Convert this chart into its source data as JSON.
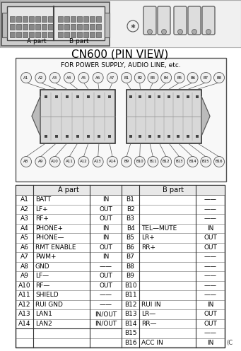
{
  "title": "CN600 (PIN VIEW)",
  "subtitle": "FOR POWER SUPPLY, AUDIO LINE, etc.",
  "connector_label_top_A": [
    "A1",
    "A2",
    "A3",
    "A4",
    "A5",
    "A6",
    "A7"
  ],
  "connector_label_top_B": [
    "B1",
    "B2",
    "B3",
    "B4",
    "B5",
    "B6",
    "B7",
    "B8"
  ],
  "connector_label_bot_A": [
    "A8",
    "A9",
    "A10",
    "A11",
    "A12",
    "A13",
    "A14"
  ],
  "connector_label_bot_B": [
    "B9",
    "B10",
    "B11",
    "B12",
    "B13",
    "B14",
    "B15",
    "B16"
  ],
  "rows": [
    [
      "A1",
      "BATT",
      "IN",
      "B1",
      "",
      "——"
    ],
    [
      "A2",
      "LF+",
      "OUT",
      "B2",
      "",
      "——"
    ],
    [
      "A3",
      "RF+",
      "OUT",
      "B3",
      "",
      "——"
    ],
    [
      "A4",
      "PHONE+",
      "IN",
      "B4",
      "TEL—MUTE",
      "IN"
    ],
    [
      "A5",
      "PHONE—",
      "IN",
      "B5",
      "LR+",
      "OUT"
    ],
    [
      "A6",
      "RMT ENABLE",
      "OUT",
      "B6",
      "RR+",
      "OUT"
    ],
    [
      "A7",
      "PWM+",
      "IN",
      "B7",
      "",
      "——"
    ],
    [
      "A8",
      "GND",
      "——",
      "B8",
      "",
      "——"
    ],
    [
      "A9",
      "LF—",
      "OUT",
      "B9",
      "",
      "——"
    ],
    [
      "A10",
      "RF—",
      "OUT",
      "B10",
      "",
      "——"
    ],
    [
      "A11",
      "SHIELD",
      "——",
      "B11",
      "",
      "——"
    ],
    [
      "A12",
      "RUI GND",
      "——",
      "B12",
      "RUI IN",
      "IN"
    ],
    [
      "A13",
      "LAN1",
      "IN/OUT",
      "B13",
      "LR—",
      "OUT"
    ],
    [
      "A14",
      "LAN2",
      "IN/OUT",
      "B14",
      "RR—",
      "OUT"
    ],
    [
      "",
      "",
      "",
      "B15",
      "",
      "——"
    ],
    [
      "",
      "",
      "",
      "B16",
      "ACC IN",
      "IN"
    ]
  ],
  "bg_color": "#ffffff",
  "border_color": "#000000",
  "text_color": "#000000"
}
